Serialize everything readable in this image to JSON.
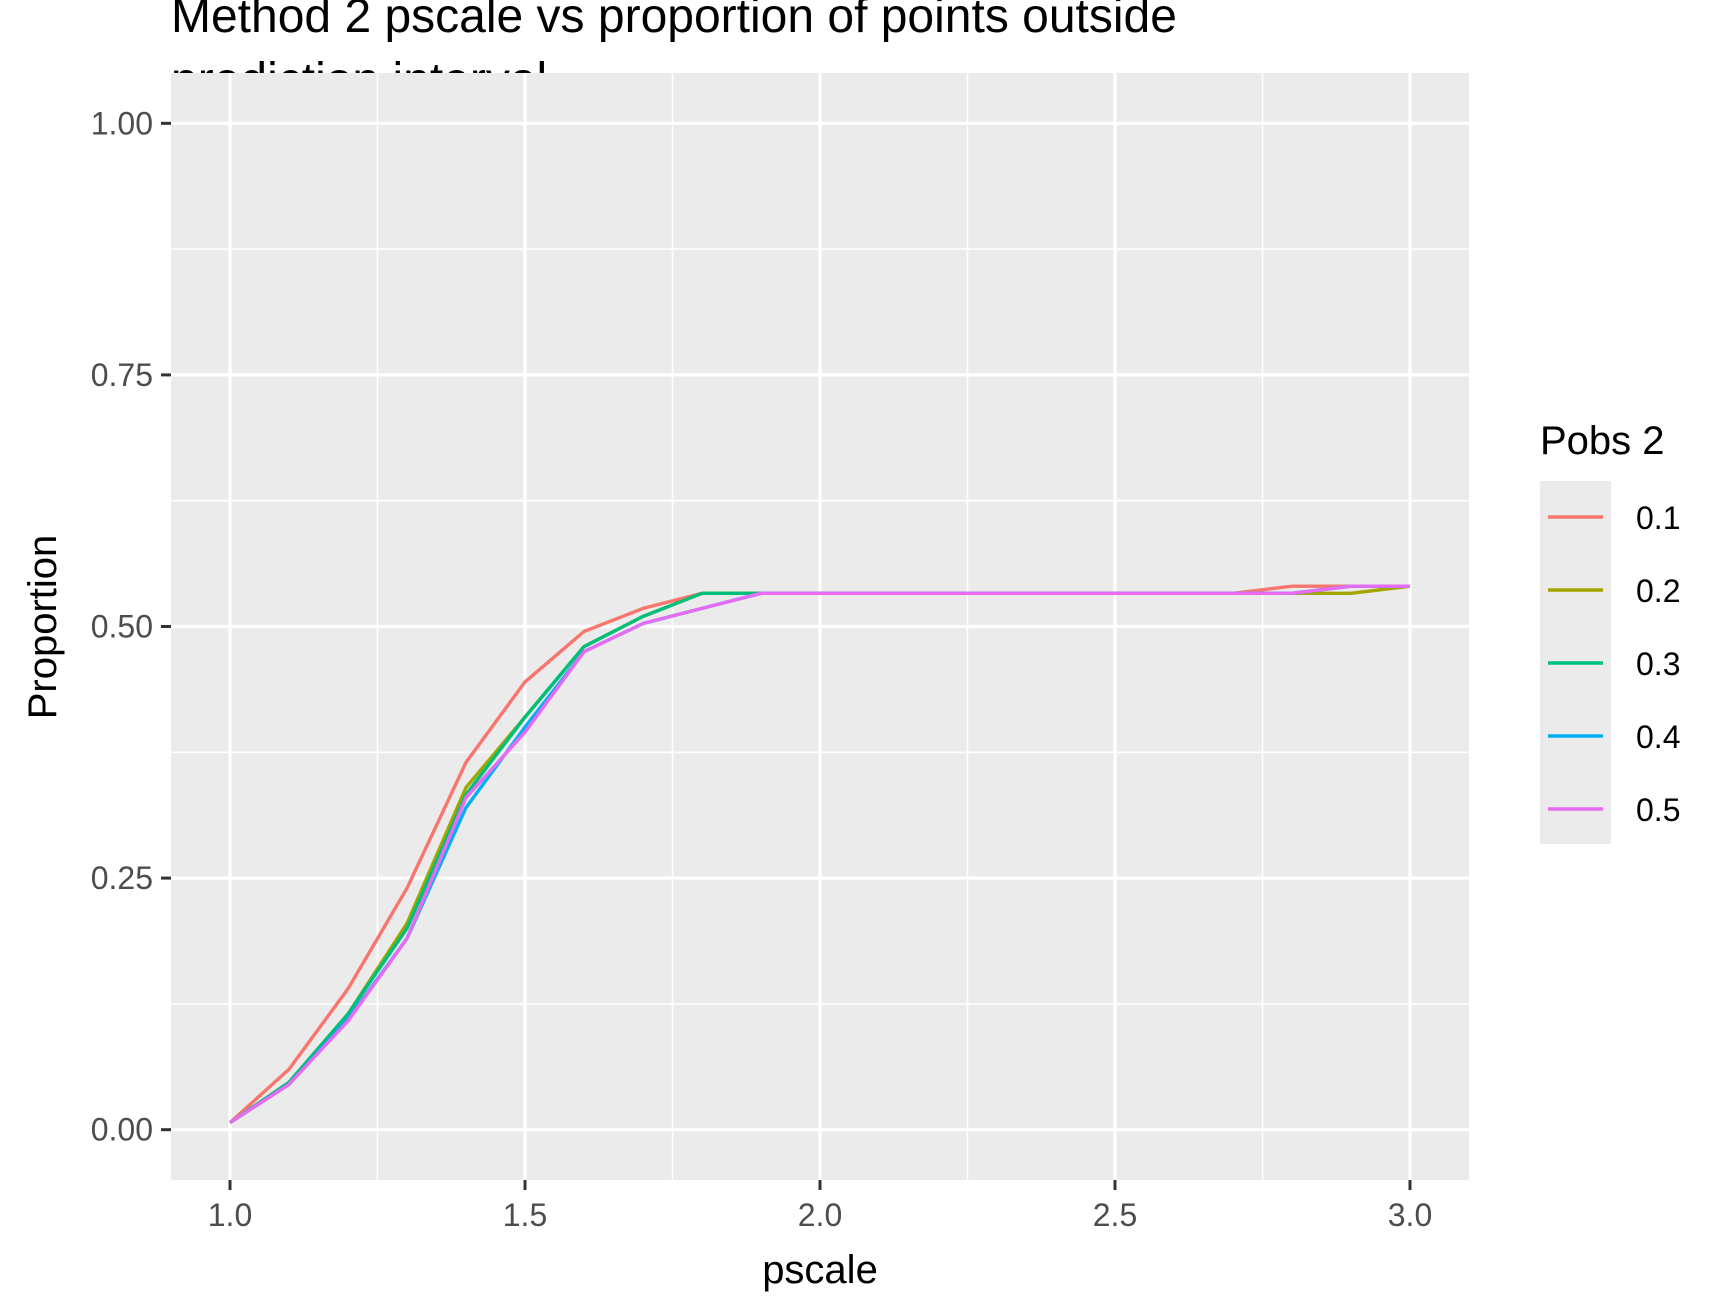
{
  "chart_data": {
    "type": "line",
    "title_lines": [
      "Method 2 pscale vs proportion of points outside",
      "prediction interval"
    ],
    "xlabel": "pscale",
    "ylabel": "Proportion",
    "xlim": [
      0.9,
      3.1
    ],
    "ylim": [
      -0.05,
      1.05
    ],
    "x_ticks": [
      1.0,
      1.5,
      2.0,
      2.5,
      3.0
    ],
    "x_tick_labels": [
      "1.0",
      "1.5",
      "2.0",
      "2.5",
      "3.0"
    ],
    "x_minor": [
      1.25,
      1.75,
      2.25,
      2.75
    ],
    "y_ticks": [
      0.0,
      0.25,
      0.5,
      0.75,
      1.0
    ],
    "y_tick_labels": [
      "0.00",
      "0.25",
      "0.50",
      "0.75",
      "1.00"
    ],
    "y_minor": [
      0.125,
      0.375,
      0.625,
      0.875
    ],
    "grid": true,
    "panel_background": "#ebebeb",
    "legend_title": "Pobs 2",
    "legend_position": "right",
    "x": [
      1.0,
      1.1,
      1.2,
      1.3,
      1.4,
      1.5,
      1.6,
      1.7,
      1.8,
      1.9,
      2.0,
      2.1,
      2.2,
      2.3,
      2.4,
      2.5,
      2.6,
      2.7,
      2.8,
      2.9,
      3.0
    ],
    "series": [
      {
        "name": "0.1",
        "color": "#F8766D",
        "values": [
          0.007,
          0.06,
          0.14,
          0.24,
          0.365,
          0.445,
          0.495,
          0.518,
          0.533,
          0.533,
          0.533,
          0.533,
          0.533,
          0.533,
          0.533,
          0.533,
          0.533,
          0.533,
          0.54,
          0.54,
          0.54
        ]
      },
      {
        "name": "0.2",
        "color": "#A3A500",
        "values": [
          0.007,
          0.047,
          0.115,
          0.205,
          0.34,
          0.41,
          0.48,
          0.51,
          0.533,
          0.533,
          0.533,
          0.533,
          0.533,
          0.533,
          0.533,
          0.533,
          0.533,
          0.533,
          0.533,
          0.533,
          0.54
        ]
      },
      {
        "name": "0.3",
        "color": "#00BF7D",
        "values": [
          0.007,
          0.047,
          0.115,
          0.2,
          0.333,
          0.41,
          0.48,
          0.51,
          0.533,
          0.533,
          0.533,
          0.533,
          0.533,
          0.533,
          0.533,
          0.533,
          0.533,
          0.533,
          0.533,
          0.54,
          0.54
        ]
      },
      {
        "name": "0.4",
        "color": "#00B0F6",
        "values": [
          0.007,
          0.045,
          0.11,
          0.19,
          0.32,
          0.4,
          0.475,
          0.503,
          0.518,
          0.533,
          0.533,
          0.533,
          0.533,
          0.533,
          0.533,
          0.533,
          0.533,
          0.533,
          0.533,
          0.54,
          0.54
        ]
      },
      {
        "name": "0.5",
        "color": "#E76BF3",
        "values": [
          0.007,
          0.045,
          0.108,
          0.19,
          0.33,
          0.395,
          0.475,
          0.503,
          0.518,
          0.533,
          0.533,
          0.533,
          0.533,
          0.533,
          0.533,
          0.533,
          0.533,
          0.533,
          0.533,
          0.54,
          0.54
        ]
      }
    ]
  }
}
